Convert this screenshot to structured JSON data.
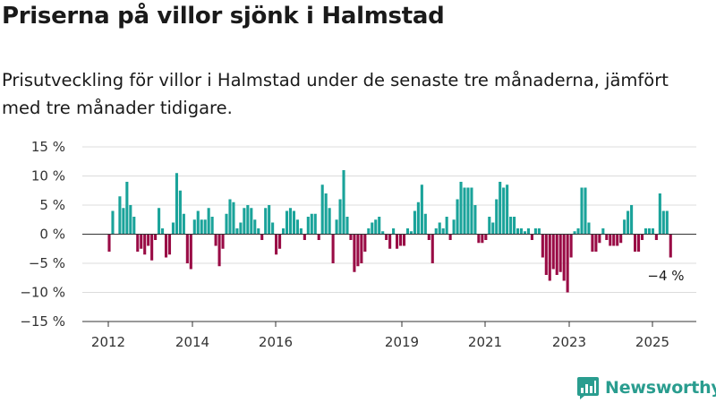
{
  "title": "Priserna på villor sjönk i Halmstad",
  "subtitle": "Prisutveckling för villor i Halmstad under de senaste tre månaderna, jämfört med tre månader tidigare.",
  "brand": "Newsworthy",
  "colors": {
    "positive": "#1aa39a",
    "negative": "#990b45",
    "grid": "#dcdcdc",
    "axis": "#333333",
    "brand": "#2a9d8f"
  },
  "chart_data": {
    "type": "bar",
    "title": "Priserna på villor sjönk i Halmstad",
    "subtitle": "Prisutveckling för villor i Halmstad under de senaste tre månaderna, jämfört med tre månader tidigare.",
    "xlabel": "",
    "ylabel": "",
    "ylim": [
      -15,
      15
    ],
    "y_ticks": [
      15,
      10,
      5,
      0,
      -5,
      -10,
      -15
    ],
    "y_tick_labels": [
      "15 %",
      "10 %",
      "5 %",
      "0 %",
      "−5 %",
      "−10 %",
      "−15 %"
    ],
    "x_ticks": [
      "2012",
      "2014",
      "2016",
      "2019",
      "2021",
      "2023",
      "2025"
    ],
    "grid": true,
    "legend": "none",
    "annotation": "−4 %",
    "series": [
      {
        "values": [
          -3,
          4,
          null,
          6.5,
          4.5,
          9,
          5,
          3,
          -3,
          -2.5,
          -3.5,
          -2,
          -4.5,
          -1,
          4.5,
          1,
          -4,
          -3.5,
          2,
          10.5,
          7.5,
          3.5,
          -5,
          -6,
          2.5,
          4,
          2.5,
          2.5,
          4.5,
          3,
          -2,
          -5.5,
          -2.5,
          3.5,
          6,
          5.5,
          1,
          2,
          4.5,
          5,
          4.5,
          2.5,
          1,
          -1,
          4.5,
          5,
          2,
          -3.5,
          -2.5,
          1,
          4,
          4.5,
          4,
          2.5,
          1,
          -1,
          3,
          3.5,
          3.5,
          -1,
          8.5,
          7,
          4.5,
          -5,
          2.5,
          6,
          11,
          3,
          -1,
          -6.5,
          -5.5,
          -5,
          -3,
          1,
          2,
          2.5,
          3,
          0.5,
          -1,
          -2.5,
          1,
          -2.5,
          -2,
          -2,
          1,
          0.5,
          4,
          5.5,
          8.5,
          3.5,
          -1,
          -5,
          1,
          2,
          1,
          3,
          -1,
          2.5,
          6,
          9,
          8,
          8,
          8,
          5,
          -1.5,
          -1.5,
          -1,
          3,
          2,
          6,
          9,
          8,
          8.5,
          3,
          3,
          1,
          1,
          0.5,
          1,
          -1,
          1,
          1,
          -4,
          -7,
          -8,
          -6,
          -7,
          -6.5,
          -8,
          -10,
          -4,
          0.5,
          1,
          8,
          8,
          2,
          -3,
          -3,
          -1.5,
          1,
          -1,
          -2,
          -2,
          -2,
          -1.5,
          2.5,
          4,
          5,
          -3,
          -3,
          -1,
          1,
          1,
          1,
          -1,
          7,
          4,
          4,
          -4
        ]
      }
    ]
  }
}
